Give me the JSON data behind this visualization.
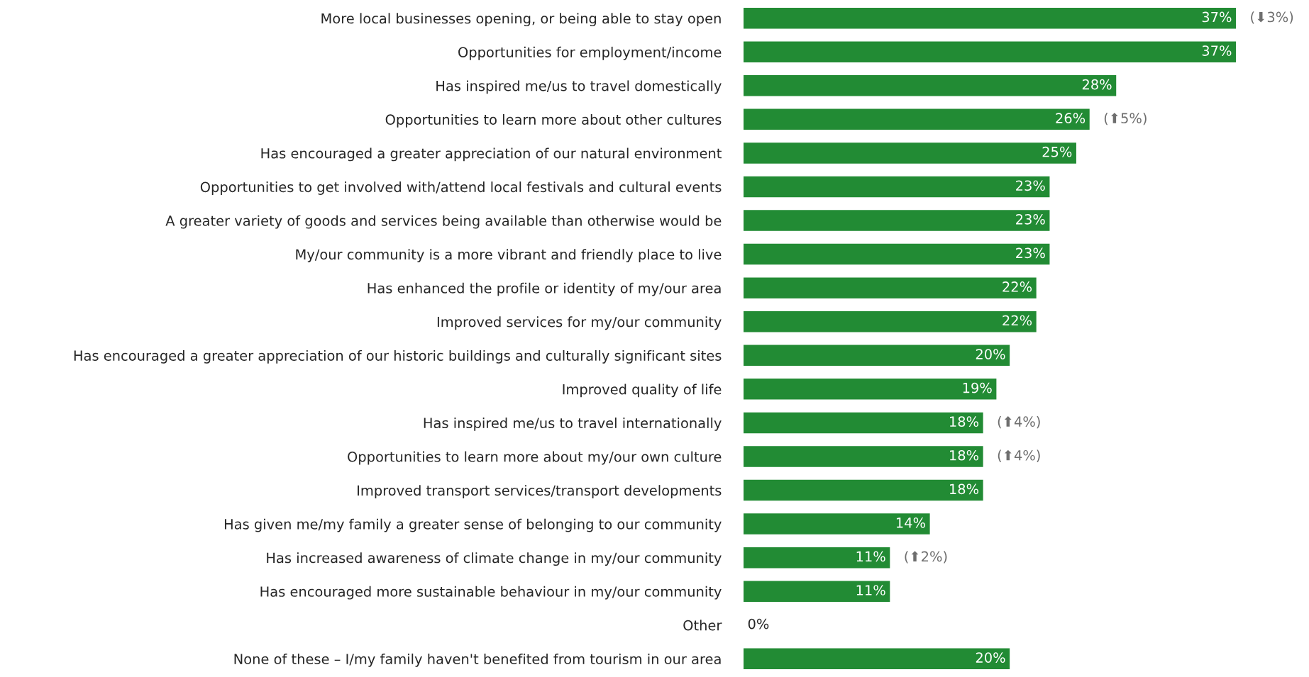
{
  "chart_data": {
    "type": "bar",
    "orientation": "horizontal",
    "categories": [
      "More local businesses opening, or being able to stay open",
      "Opportunities for employment/income",
      "Has inspired me/us to travel domestically",
      "Opportunities to learn more about other cultures",
      "Has encouraged a greater appreciation of our natural environment",
      "Opportunities to get involved with/attend local festivals and cultural events",
      "A greater variety of goods and services being available than otherwise would be",
      "My/our community is a more vibrant and friendly place to live",
      "Has enhanced the profile or identity of my/our area",
      "Improved services for my/our community",
      "Has encouraged a greater appreciation of our historic buildings and culturally significant sites",
      "Improved quality of life",
      "Has inspired me/us to travel internationally",
      "Opportunities to learn more about my/our own culture",
      "Improved transport services/transport developments",
      "Has given me/my family a greater sense of belonging to our community",
      "Has increased awareness of climate change in my/our community",
      "Has encouraged more sustainable behaviour in my/our community",
      "Other",
      "None of these – I/my family haven't benefited from tourism in our area"
    ],
    "values": [
      37,
      37,
      28,
      26,
      25,
      23,
      23,
      23,
      22,
      22,
      20,
      19,
      18,
      18,
      18,
      14,
      11,
      11,
      0,
      20
    ],
    "color": "#228b34",
    "value_labels": [
      "37%",
      "37%",
      "28%",
      "26%",
      "25%",
      "23%",
      "23%",
      "23%",
      "22%",
      "22%",
      "20%",
      "19%",
      "18%",
      "18%",
      "18%",
      "14%",
      "11%",
      "11%",
      "0%",
      "20%"
    ],
    "annotations": [
      {
        "text": "(⬇3%)",
        "x": 37,
        "y": "More local businesses opening, or being able to stay open"
      },
      {
        "text": "(⬆5%)",
        "x": 26,
        "y": "Opportunities to learn more about other cultures"
      },
      {
        "text": "(⬆4%)",
        "x": 18,
        "y": "Has inspired me/us to travel internationally"
      },
      {
        "text": "(⬆4%)",
        "x": 18,
        "y": "Opportunities to learn more about my/our own culture"
      },
      {
        "text": "(⬆2%)",
        "x": 11,
        "y": "Has increased awareness of climate change in my/our community"
      }
    ]
  }
}
